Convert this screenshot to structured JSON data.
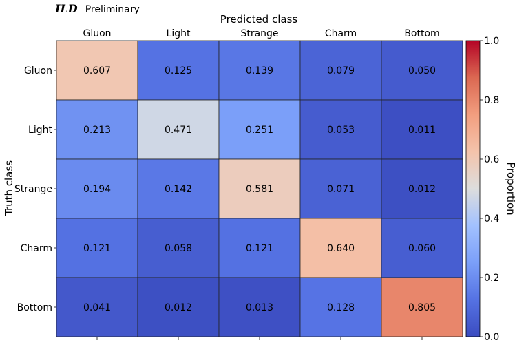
{
  "header": {
    "experiment": "ILD",
    "status": "Preliminary"
  },
  "chart_data": {
    "type": "heatmap",
    "title": "",
    "xlabel": "Predicted class",
    "ylabel": "Truth class",
    "x_categories": [
      "Gluon",
      "Light",
      "Strange",
      "Charm",
      "Bottom"
    ],
    "y_categories": [
      "Gluon",
      "Light",
      "Strange",
      "Charm",
      "Bottom"
    ],
    "values": [
      [
        0.607,
        0.125,
        0.139,
        0.079,
        0.05
      ],
      [
        0.213,
        0.471,
        0.251,
        0.053,
        0.011
      ],
      [
        0.194,
        0.142,
        0.581,
        0.071,
        0.012
      ],
      [
        0.121,
        0.058,
        0.121,
        0.64,
        0.06
      ],
      [
        0.041,
        0.012,
        0.013,
        0.128,
        0.805
      ]
    ],
    "value_labels": [
      [
        "0.607",
        "0.125",
        "0.139",
        "0.079",
        "0.050"
      ],
      [
        "0.213",
        "0.471",
        "0.251",
        "0.053",
        "0.011"
      ],
      [
        "0.194",
        "0.142",
        "0.581",
        "0.071",
        "0.012"
      ],
      [
        "0.121",
        "0.058",
        "0.121",
        "0.640",
        "0.060"
      ],
      [
        "0.041",
        "0.012",
        "0.013",
        "0.128",
        "0.805"
      ]
    ],
    "colormap": "coolwarm",
    "vmin": 0.0,
    "vmax": 1.0,
    "colorbar": {
      "label": "Proportion",
      "ticks": [
        0.0,
        0.2,
        0.4,
        0.6,
        0.8,
        1.0
      ],
      "tick_labels": [
        "0.0",
        "0.2",
        "0.4",
        "0.6",
        "0.8",
        "1.0"
      ]
    }
  }
}
